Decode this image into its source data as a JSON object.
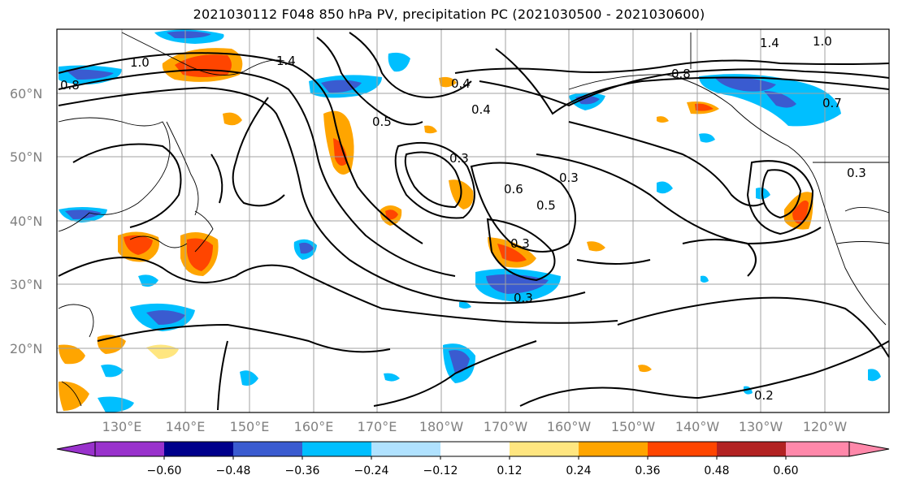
{
  "title": "2021030112 F048 850 hPa PV, precipitation PC (2021030500 - 2021030600)",
  "lat_labels": [
    "60°N",
    "50°N",
    "40°N",
    "30°N",
    "20°N"
  ],
  "lon_labels": [
    "130°E",
    "140°E",
    "150°E",
    "160°E",
    "170°E",
    "180°W",
    "170°W",
    "160°W",
    "150°W",
    "140°W",
    "130°W",
    "120°W"
  ],
  "contour_labels": [
    "1.4",
    "1.0",
    "0.8",
    "1.4",
    "1.0",
    "0.4",
    "0.4",
    "0.3",
    "0.3",
    "0.5",
    "0.6",
    "0.5",
    "0.3",
    "0.3",
    "0.2",
    "0.7",
    "0.8",
    "0.3"
  ],
  "colorbar": {
    "ticks": [
      "−0.60",
      "−0.48",
      "−0.36",
      "−0.24",
      "−0.12",
      "0.12",
      "0.24",
      "0.36",
      "0.48",
      "0.60"
    ],
    "colors": [
      "#9932cc",
      "#00008b",
      "#3a5bd0",
      "#00bfff",
      "#b0e2ff",
      "#ffffff",
      "#ffe680",
      "#ffa500",
      "#ff4500",
      "#b22222",
      "#ff88aa"
    ]
  },
  "colors": {
    "neg_strong": "#3a5bd0",
    "neg_mid": "#00bfff",
    "neg_weak": "#b0e2ff",
    "pos_weak": "#ffe680",
    "pos_mid": "#ffa500",
    "pos_strong": "#ff4500",
    "grid": "#a0a0a0"
  }
}
